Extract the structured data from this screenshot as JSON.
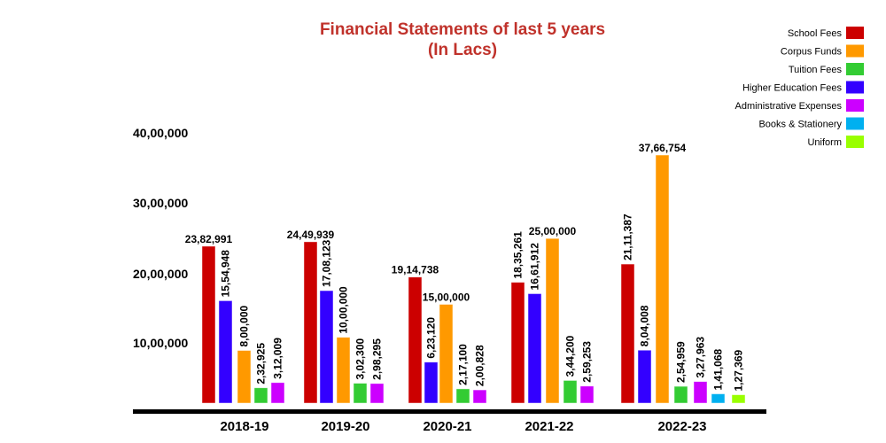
{
  "chart_data": {
    "type": "bar",
    "title": "Financial Statements of last 5 years",
    "subtitle": "(In Lacs)",
    "xlabel": "",
    "ylabel": "",
    "ylim": [
      0,
      4000000
    ],
    "y_ticks": [
      "10,00,000",
      "20,00,000",
      "30,00,000",
      "40,00,000"
    ],
    "legend_position": "top-right",
    "legend": [
      {
        "name": "School Fees",
        "color": "#cc0000"
      },
      {
        "name": "Corpus Funds",
        "color": "#ff9900"
      },
      {
        "name": "Tuition Fees",
        "color": "#33cc33"
      },
      {
        "name": "Higher Education Fees",
        "color": "#3300ff"
      },
      {
        "name": "Administrative Expenses",
        "color": "#cc00ff"
      },
      {
        "name": "Books & Stationery",
        "color": "#00b0f0"
      },
      {
        "name": "Uniform",
        "color": "#99ff00"
      }
    ],
    "groups": [
      {
        "category": "2018-19",
        "bars": [
          {
            "series": "School Fees",
            "value": 2382991,
            "label": "23,82,991"
          },
          {
            "series": "Higher Education Fees",
            "value": 1554948,
            "label": "15,54,948"
          },
          {
            "series": "Corpus Funds",
            "value": 800000,
            "label": "8,00,000"
          },
          {
            "series": "Tuition Fees",
            "value": 232925,
            "label": "2,32,925"
          },
          {
            "series": "Administrative Expenses",
            "value": 312009,
            "label": "3,12,009"
          }
        ]
      },
      {
        "category": "2019-20",
        "bars": [
          {
            "series": "School Fees",
            "value": 2449939,
            "label": "24,49,939"
          },
          {
            "series": "Higher Education Fees",
            "value": 1708123,
            "label": "17,08,123"
          },
          {
            "series": "Corpus Funds",
            "value": 1000000,
            "label": "10,00,000"
          },
          {
            "series": "Tuition Fees",
            "value": 302300,
            "label": "3,02,300"
          },
          {
            "series": "Administrative Expenses",
            "value": 298295,
            "label": "2,98,295"
          }
        ]
      },
      {
        "category": "2020-21",
        "bars": [
          {
            "series": "School Fees",
            "value": 1914738,
            "label": "19,14,738"
          },
          {
            "series": "Higher Education Fees",
            "value": 623120,
            "label": "6,23,120"
          },
          {
            "series": "Corpus Funds",
            "value": 1500000,
            "label": "15,00,000"
          },
          {
            "series": "Tuition Fees",
            "value": 217100,
            "label": "2,17,100"
          },
          {
            "series": "Administrative Expenses",
            "value": 200828,
            "label": "2,00,828"
          }
        ]
      },
      {
        "category": "2021-22",
        "bars": [
          {
            "series": "School Fees",
            "value": 1835261,
            "label": "18,35,261"
          },
          {
            "series": "Higher Education Fees",
            "value": 1661912,
            "label": "16,61,912"
          },
          {
            "series": "Corpus Funds",
            "value": 2500000,
            "label": "25,00,000"
          },
          {
            "series": "Tuition Fees",
            "value": 344200,
            "label": "3,44,200"
          },
          {
            "series": "Administrative Expenses",
            "value": 259253,
            "label": "2,59,253"
          }
        ]
      },
      {
        "category": "2022-23",
        "bars": [
          {
            "series": "School Fees",
            "value": 2111387,
            "label": "21,11,387"
          },
          {
            "series": "Higher Education Fees",
            "value": 804008,
            "label": "8,04,008"
          },
          {
            "series": "Corpus Funds",
            "value": 3766754,
            "label": "37,66,754"
          },
          {
            "series": "Tuition Fees",
            "value": 254959,
            "label": "2,54,959"
          },
          {
            "series": "Administrative Expenses",
            "value": 327963,
            "label": "3,27,963"
          },
          {
            "series": "Books & Stationery",
            "value": 141068,
            "label": "1,41,068"
          },
          {
            "series": "Uniform",
            "value": 127369,
            "label": "1,27,369"
          }
        ]
      }
    ]
  }
}
